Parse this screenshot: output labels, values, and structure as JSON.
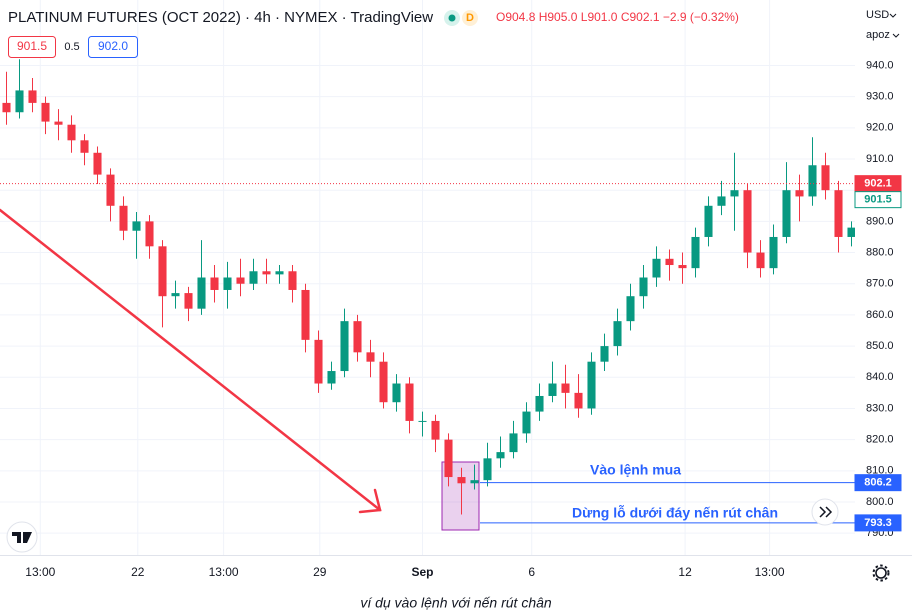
{
  "header": {
    "title": "PLATINUM FUTURES (OCT 2022) · 4h · NYMEX · TradingView",
    "badge": "D",
    "ohlc": [
      "O904.8",
      "H905.0",
      "L901.0",
      "C902.1",
      "−2.9 (−0.32%)"
    ],
    "sell": "901.5",
    "spread": "0.5",
    "buy": "902.0",
    "currency": "USD",
    "scale_mode": "apoz"
  },
  "chart_data": {
    "type": "candlestick",
    "open": [
      928,
      925,
      932,
      928,
      922,
      921,
      916,
      912,
      905,
      895,
      887,
      890,
      882,
      866,
      867,
      862,
      872,
      868,
      872,
      870,
      874,
      873,
      874,
      868,
      852,
      838,
      842,
      858,
      848,
      845,
      832,
      838,
      826,
      826,
      820,
      808,
      806,
      807,
      814,
      816,
      822,
      829,
      834,
      838,
      835,
      830,
      845,
      850,
      858,
      866,
      872,
      878,
      876,
      875,
      885,
      895,
      898,
      900,
      880,
      875,
      885,
      900,
      898,
      908,
      900,
      885
    ],
    "high": [
      938,
      942,
      936,
      930,
      926,
      924,
      918,
      914,
      907,
      898,
      893,
      892,
      884,
      871,
      869,
      884,
      876,
      877,
      878,
      878,
      878,
      876,
      876,
      870,
      855,
      845,
      862,
      860,
      852,
      848,
      841,
      840,
      829,
      828,
      822,
      811,
      812,
      819,
      821,
      826,
      832,
      838,
      845,
      844,
      841,
      848,
      854,
      862,
      870,
      876,
      882,
      881,
      880,
      888,
      898,
      903,
      912,
      902,
      884,
      889,
      909,
      905,
      917,
      912,
      903,
      890
    ],
    "low": [
      921,
      923,
      925,
      918,
      916,
      912,
      908,
      902,
      890,
      884,
      878,
      878,
      856,
      862,
      858,
      860,
      864,
      862,
      866,
      868,
      870,
      870,
      864,
      848,
      835,
      836,
      840,
      845,
      840,
      830,
      829,
      822,
      821,
      816,
      805,
      796,
      804,
      805,
      811,
      814,
      819,
      826,
      832,
      830,
      827,
      828,
      842,
      847,
      855,
      862,
      869,
      871,
      870,
      872,
      882,
      892,
      887,
      875,
      872,
      873,
      883,
      890,
      895,
      897,
      880,
      882
    ],
    "close": [
      925,
      932,
      928,
      922,
      921,
      916,
      912,
      905,
      895,
      887,
      890,
      882,
      866,
      867,
      862,
      872,
      868,
      872,
      870,
      874,
      873,
      874,
      868,
      852,
      838,
      842,
      858,
      848,
      845,
      832,
      838,
      826,
      826,
      820,
      808,
      806,
      807,
      814,
      816,
      822,
      829,
      834,
      838,
      835,
      830,
      845,
      850,
      858,
      866,
      872,
      878,
      876,
      875,
      885,
      895,
      898,
      900,
      880,
      875,
      885,
      900,
      898,
      908,
      900,
      885,
      888
    ],
    "up_color": "#089981",
    "down_color": "#f23645",
    "ylim": [
      783,
      961
    ],
    "yticks": [
      {
        "value": 790,
        "label": "790.0"
      },
      {
        "value": 800,
        "label": "800.0"
      },
      {
        "value": 810,
        "label": "810.0"
      },
      {
        "value": 820,
        "label": "820.0"
      },
      {
        "value": 830,
        "label": "830.0"
      },
      {
        "value": 840,
        "label": "840.0"
      },
      {
        "value": 850,
        "label": "850.0"
      },
      {
        "value": 860,
        "label": "860.0"
      },
      {
        "value": 870,
        "label": "870.0"
      },
      {
        "value": 880,
        "label": "880.0"
      },
      {
        "value": 890,
        "label": "890.0"
      },
      {
        "value": 900,
        "label": "900.0"
      },
      {
        "value": 910,
        "label": "910.0"
      },
      {
        "value": 920,
        "label": "920.0"
      },
      {
        "value": 930,
        "label": "930.0"
      },
      {
        "value": 940,
        "label": "940.0"
      }
    ],
    "xlim": [
      -0.5,
      65.5
    ],
    "xticks": [
      {
        "value": 2.6,
        "label": "13:00"
      },
      {
        "value": 10.1,
        "label": "22"
      },
      {
        "value": 16.7,
        "label": "13:00"
      },
      {
        "value": 24.1,
        "label": "29"
      },
      {
        "value": 32,
        "label": "Sep"
      },
      {
        "value": 40.4,
        "label": "6"
      },
      {
        "value": 52.2,
        "label": "12"
      },
      {
        "value": 58.7,
        "label": "13:00"
      }
    ],
    "price_labels": [
      {
        "value": 902.1,
        "color": "#f23645",
        "line": "dotted",
        "filled": true
      },
      {
        "value": 901.5,
        "color": "#089981",
        "line": "none",
        "filled": false
      },
      {
        "value": 806.2,
        "color": "#2962ff",
        "line": "solid",
        "filled": true
      },
      {
        "value": 793.3,
        "color": "#2962ff",
        "line": "solid",
        "filled": true
      }
    ],
    "annotations": [
      "Vào lệnh mua",
      "Dừng lỗ dưới đáy nến rút chân"
    ]
  },
  "caption": "ví dụ vào lệnh với nến rút chân"
}
